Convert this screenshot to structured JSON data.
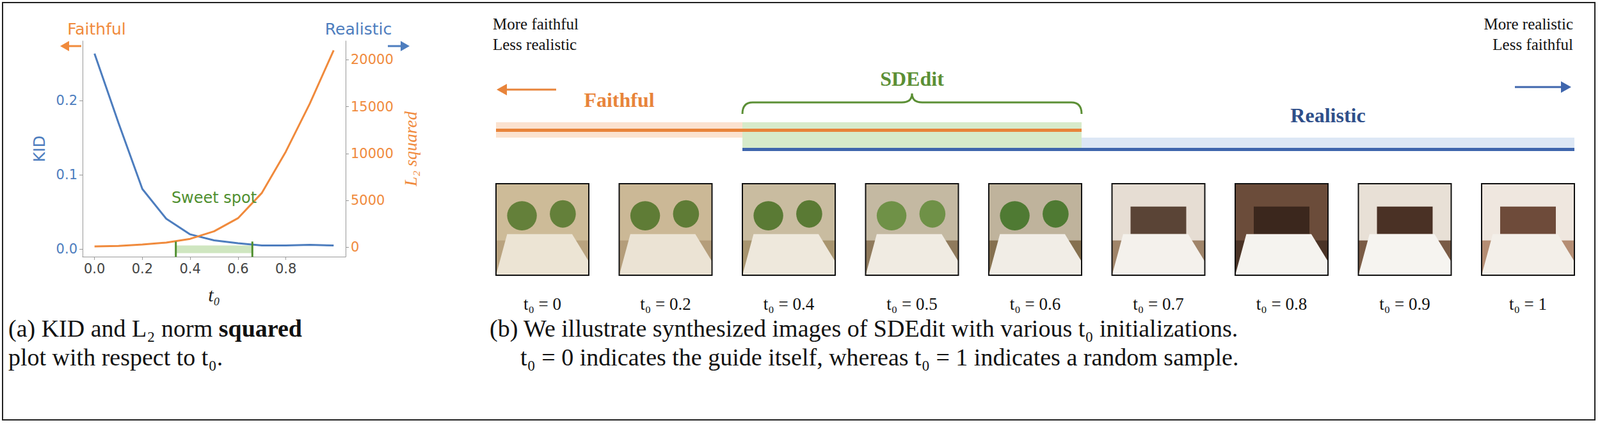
{
  "chart_data": {
    "type": "line",
    "x": [
      0,
      0.1,
      0.2,
      0.3,
      0.4,
      0.5,
      0.6,
      0.7,
      0.8,
      0.9,
      1.0
    ],
    "series": [
      {
        "color": "#4d7dbe",
        "values": [
          0.263,
          0.17,
          0.081,
          0.041,
          0.02,
          0.012,
          0.008,
          0.005,
          0.005,
          0.006,
          0.005
        ]
      },
      {
        "color": "#f08a3c",
        "axis": "y2",
        "values": [
          100,
          150,
          300,
          500,
          900,
          1700,
          3100,
          5800,
          10200,
          15300,
          21000
        ]
      }
    ],
    "xlabel": "t₀",
    "ylabel": "KID",
    "y2label": "L₂ squared",
    "xlim": [
      -0.05,
      1.05
    ],
    "xticks": [
      {
        "value": 0,
        "label": "0.0"
      },
      {
        "value": 0.2,
        "label": "0.2"
      },
      {
        "value": 0.4,
        "label": "0.4"
      },
      {
        "value": 0.6,
        "label": "0.6"
      },
      {
        "value": 0.8,
        "label": "0.8"
      }
    ],
    "ylim": [
      -0.01,
      0.28
    ],
    "yticks": [
      {
        "value": 0,
        "label": "0.0"
      },
      {
        "value": 0.1,
        "label": "0.1"
      },
      {
        "value": 0.2,
        "label": "0.2"
      }
    ],
    "y2lim": [
      -1000,
      22000
    ],
    "y2ticks": [
      0,
      5000,
      10000,
      15000,
      20000
    ],
    "grid": false,
    "annotations": {
      "faithful": "Faithful",
      "realistic": "Realistic",
      "sweet_spot": {
        "text": "Sweet spot",
        "range": [
          0.34,
          0.66
        ]
      }
    }
  },
  "caption_a": {
    "lines": [
      "(a) KID and L₂ norm squared",
      "plot with respect to t₀."
    ],
    "bold": "squared"
  },
  "panel_b": {
    "top_left": [
      "More faithful",
      "Less realistic"
    ],
    "top_right": [
      "More realistic",
      "Less faithful"
    ],
    "bands": {
      "faithful": {
        "label": "Faithful",
        "range": [
          0,
          0.6
        ]
      },
      "sdedit": {
        "label": "SDEdit",
        "range": [
          0.4,
          0.6
        ]
      },
      "realistic": {
        "label": "Realistic",
        "range": [
          0.4,
          1
        ]
      }
    },
    "images": [
      {
        "t0": 0,
        "label": "t₀ = 0"
      },
      {
        "t0": 0.2,
        "label": "t₀ = 0.2"
      },
      {
        "t0": 0.4,
        "label": "t₀ = 0.4"
      },
      {
        "t0": 0.5,
        "label": "t₀ = 0.5"
      },
      {
        "t0": 0.6,
        "label": "t₀ = 0.6"
      },
      {
        "t0": 0.7,
        "label": "t₀ = 0.7"
      },
      {
        "t0": 0.8,
        "label": "t₀ = 0.8"
      },
      {
        "t0": 0.9,
        "label": "t₀ = 0.9"
      },
      {
        "t0": 1,
        "label": "t₀ = 1"
      }
    ],
    "caption": [
      "(b) We illustrate synthesized images of SDEdit with various t₀ initializations.",
      "t₀ = 0 indicates the guide itself, whereas t₀ = 1 indicates a random sample."
    ]
  }
}
